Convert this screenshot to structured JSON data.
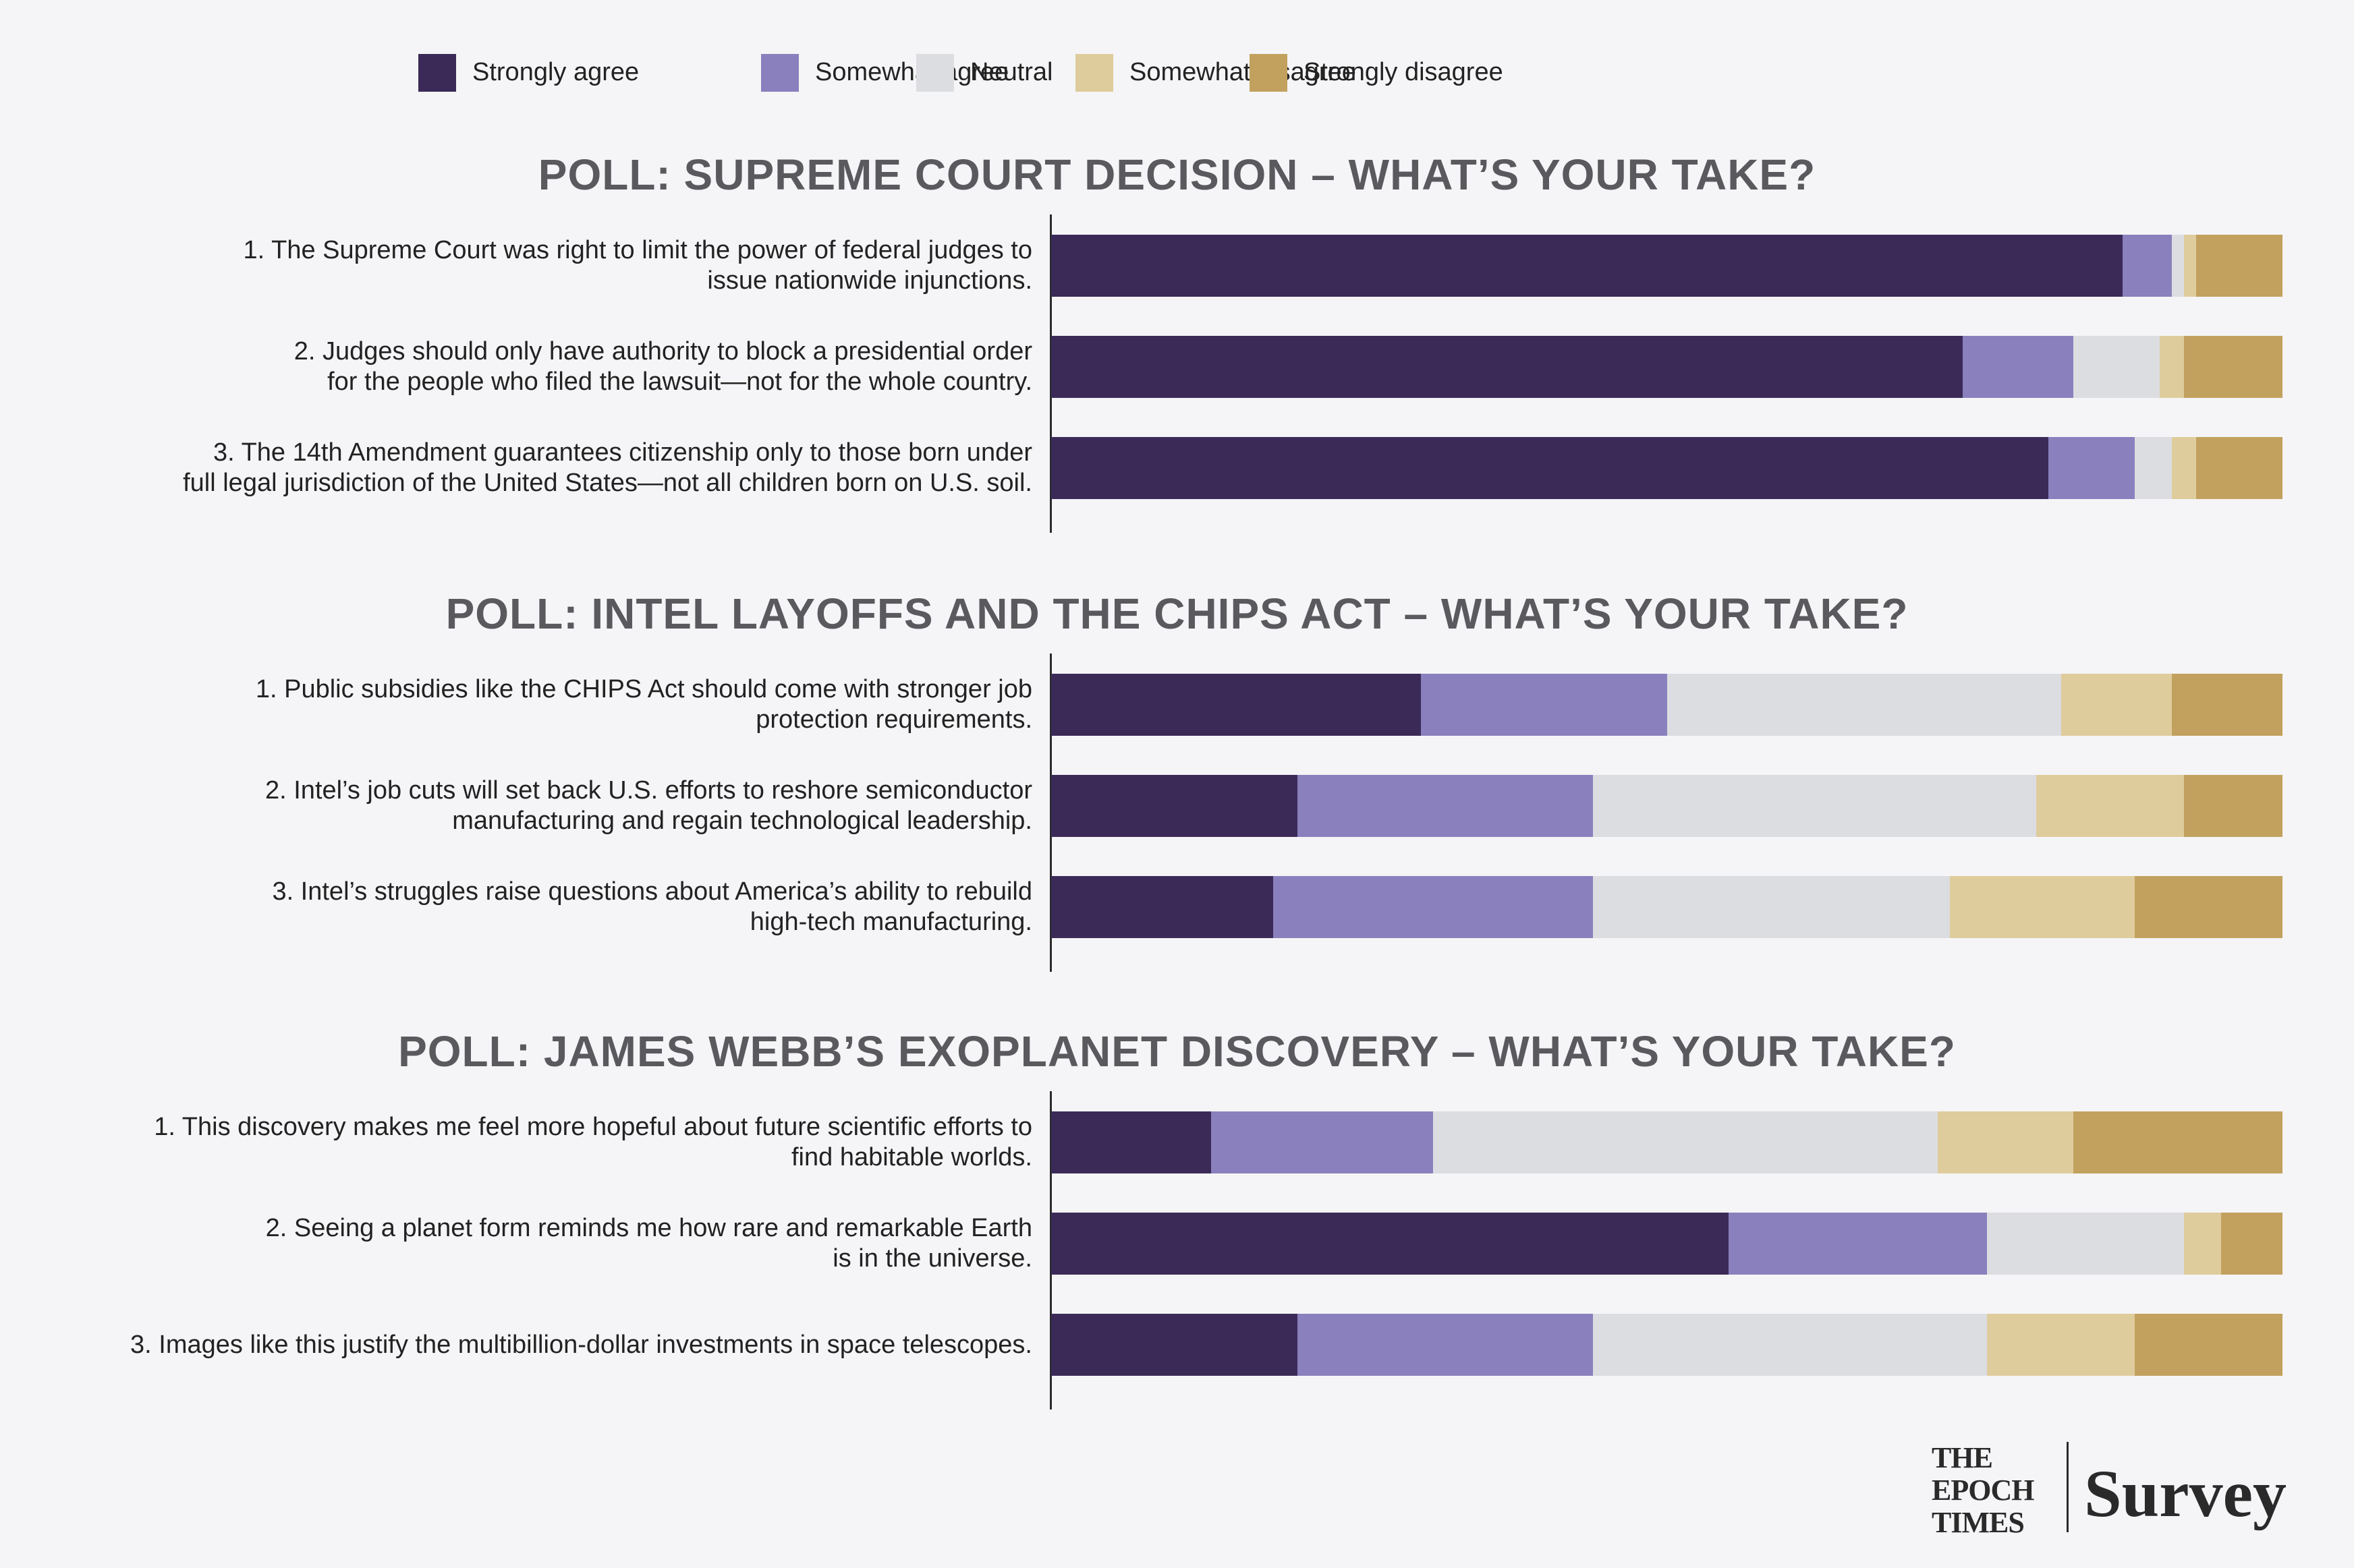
{
  "legend": [
    {
      "label": "Strongly agree",
      "color": "#3b2a58"
    },
    {
      "label": "Somewhat agree",
      "color": "#8a80bd"
    },
    {
      "label": "Neutral",
      "color": "#dcdde1"
    },
    {
      "label": "Somewhat disagree",
      "color": "#dfcc9c"
    },
    {
      "label": "Strongly disagree",
      "color": "#c2a15f"
    }
  ],
  "chart_data": [
    {
      "type": "bar",
      "orientation": "horizontal",
      "stacked": true,
      "title": "POLL: SUPREME COURT DECISION – WHAT’S YOUR TAKE?",
      "categories": [
        [
          "1. The Supreme Court was right to limit the power of federal judges to",
          "issue nationwide injunctions."
        ],
        [
          "2. Judges should only have authority to block a presidential order",
          "for the people who filed the lawsuit—not for the whole country."
        ],
        [
          "3. The 14th Amendment guarantees citizenship only to those born under",
          "full legal jurisdiction of the United States—not all children born on U.S. soil."
        ]
      ],
      "series": [
        {
          "name": "Strongly agree",
          "values": [
            87,
            74,
            81
          ]
        },
        {
          "name": "Somewhat agree",
          "values": [
            4,
            9,
            7
          ]
        },
        {
          "name": "Neutral",
          "values": [
            1,
            7,
            3
          ]
        },
        {
          "name": "Somewhat disagree",
          "values": [
            1,
            2,
            2
          ]
        },
        {
          "name": "Strongly disagree",
          "values": [
            7,
            8,
            7
          ]
        }
      ]
    },
    {
      "type": "bar",
      "orientation": "horizontal",
      "stacked": true,
      "title": "POLL: INTEL LAYOFFS AND THE CHIPS ACT – WHAT’S YOUR TAKE?",
      "categories": [
        [
          "1. Public subsidies like the CHIPS Act should come with stronger job",
          "protection requirements."
        ],
        [
          "2. Intel’s job cuts will set back U.S. efforts to reshore semiconductor",
          "manufacturing and regain technological leadership."
        ],
        [
          "3. Intel’s struggles raise questions about America’s ability to rebuild",
          "high-tech manufacturing."
        ]
      ],
      "series": [
        {
          "name": "Strongly agree",
          "values": [
            30,
            20,
            18
          ]
        },
        {
          "name": "Somewhat agree",
          "values": [
            20,
            24,
            26
          ]
        },
        {
          "name": "Neutral",
          "values": [
            32,
            36,
            29
          ]
        },
        {
          "name": "Somewhat disagree",
          "values": [
            9,
            12,
            15
          ]
        },
        {
          "name": "Strongly disagree",
          "values": [
            9,
            8,
            12
          ]
        }
      ]
    },
    {
      "type": "bar",
      "orientation": "horizontal",
      "stacked": true,
      "title": "POLL: JAMES WEBB’S EXOPLANET DISCOVERY – WHAT’S YOUR TAKE?",
      "categories": [
        [
          "1. This discovery makes me feel more hopeful about future scientific efforts to",
          "find habitable worlds."
        ],
        [
          "2. Seeing a planet form reminds me how rare and remarkable Earth",
          "is in the universe."
        ],
        [
          "3. Images like this justify the multibillion-dollar investments in space telescopes."
        ]
      ],
      "series": [
        {
          "name": "Strongly agree",
          "values": [
            13,
            55,
            20
          ]
        },
        {
          "name": "Somewhat agree",
          "values": [
            18,
            21,
            24
          ]
        },
        {
          "name": "Neutral",
          "values": [
            41,
            16,
            32
          ]
        },
        {
          "name": "Somewhat disagree",
          "values": [
            11,
            3,
            12
          ]
        },
        {
          "name": "Strongly disagree",
          "values": [
            17,
            5,
            12
          ]
        }
      ]
    }
  ],
  "brand": {
    "logo_lines": [
      "THE",
      "EPOCH",
      "TIMES"
    ],
    "product": "Survey"
  }
}
